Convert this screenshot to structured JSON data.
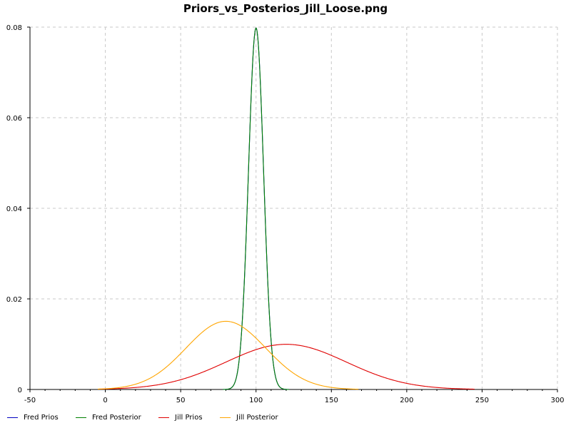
{
  "chart_data": {
    "type": "line",
    "title": "Priors_vs_Posterios_Jill_Loose.png",
    "xlabel": "",
    "ylabel": "",
    "xlim": [
      -50,
      300
    ],
    "ylim": [
      0,
      0.08
    ],
    "x_ticks": [
      "-50",
      "0",
      "50",
      "100",
      "150",
      "200",
      "250",
      "300"
    ],
    "y_ticks": [
      "0",
      "0.02",
      "0.04",
      "0.06",
      "0.08"
    ],
    "grid": true,
    "legend_position": "bottom-left",
    "series": [
      {
        "name": "Fred Prios",
        "color": "#0000c0",
        "distribution": "normal",
        "mean": 100,
        "sd": 5,
        "x_range": [
          78,
          122
        ]
      },
      {
        "name": "Fred Posterior",
        "color": "#008000",
        "distribution": "normal",
        "mean": 100,
        "sd": 5,
        "x_range": [
          78,
          122
        ]
      },
      {
        "name": "Jill Prios",
        "color": "#e00000",
        "distribution": "normal",
        "mean": 120,
        "sd": 40,
        "x_range": [
          -5,
          245
        ]
      },
      {
        "name": "Jill Posterior",
        "color": "#ffa500",
        "distribution": "normal",
        "mean": 80,
        "sd": 26.5,
        "x_range": [
          -5,
          168
        ]
      }
    ]
  }
}
